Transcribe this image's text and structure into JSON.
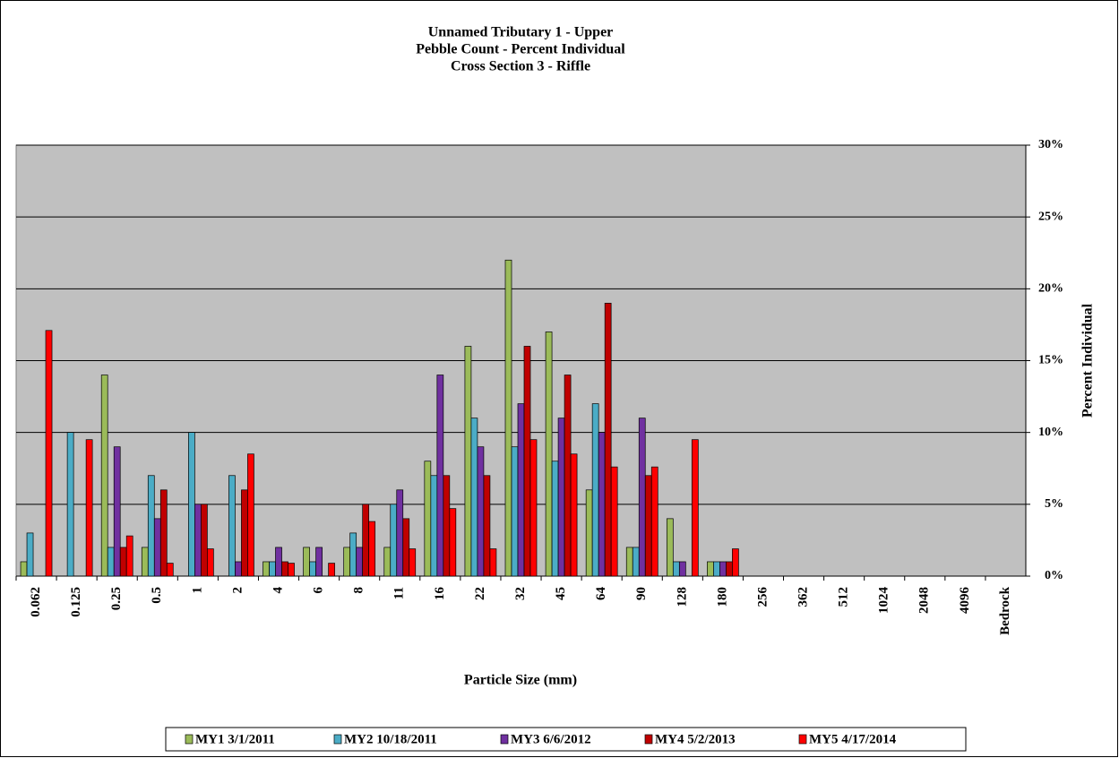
{
  "chart_data": {
    "type": "bar",
    "title": [
      "Unnamed Tributary 1 - Upper",
      "Pebble Count - Percent Individual",
      "Cross Section 3 - Riffle"
    ],
    "x_label": "Particle Size (mm)",
    "y_label": "Percent Individual",
    "categories": [
      "0.062",
      "0.125",
      "0.25",
      "0.5",
      "1",
      "2",
      "4",
      "6",
      "8",
      "11",
      "16",
      "22",
      "32",
      "45",
      "64",
      "90",
      "128",
      "180",
      "256",
      "362",
      "512",
      "1024",
      "2048",
      "4096",
      "Bedrock"
    ],
    "series": [
      {
        "name": "MY1 3/1/2011",
        "color": "#9BBB59",
        "values": [
          1,
          0,
          14,
          2,
          0,
          0,
          1,
          2,
          2,
          2,
          8,
          16,
          22,
          17,
          6,
          2,
          4,
          1,
          0,
          0,
          0,
          0,
          0,
          0,
          0
        ]
      },
      {
        "name": "MY2 10/18/2011",
        "color": "#4BACC6",
        "values": [
          3,
          10,
          2,
          7,
          10,
          7,
          1,
          1,
          3,
          5,
          7,
          11,
          9,
          8,
          12,
          2,
          1,
          1,
          0,
          0,
          0,
          0,
          0,
          0,
          0
        ]
      },
      {
        "name": "MY3 6/6/2012",
        "color": "#7030A0",
        "values": [
          0,
          0,
          9,
          4,
          5,
          1,
          2,
          2,
          2,
          6,
          14,
          9,
          12,
          11,
          10,
          11,
          1,
          1,
          0,
          0,
          0,
          0,
          0,
          0,
          0
        ]
      },
      {
        "name": "MY4 5/2/2013",
        "color": "#C00000",
        "values": [
          0,
          0,
          2,
          6,
          5,
          6,
          1,
          0,
          5,
          4,
          7,
          7,
          16,
          14,
          19,
          7,
          0,
          1,
          0,
          0,
          0,
          0,
          0,
          0,
          0
        ]
      },
      {
        "name": "MY5 4/17/2014",
        "color": "#FF0000",
        "values": [
          17.1,
          9.5,
          2.8,
          0.9,
          1.9,
          8.5,
          0.9,
          0.9,
          3.8,
          1.9,
          4.7,
          1.9,
          9.5,
          8.5,
          7.6,
          7.6,
          9.5,
          1.9,
          0,
          0,
          0,
          0,
          0,
          0,
          0
        ]
      }
    ],
    "ylim": [
      0,
      30
    ],
    "yticks": [
      {
        "value": 0,
        "label": "0%"
      },
      {
        "value": 5,
        "label": "5%"
      },
      {
        "value": 10,
        "label": "10%"
      },
      {
        "value": 15,
        "label": "15%"
      },
      {
        "value": 20,
        "label": "20%"
      },
      {
        "value": 25,
        "label": "25%"
      },
      {
        "value": 30,
        "label": "30%"
      }
    ],
    "grid": true,
    "legend": "bottom"
  }
}
